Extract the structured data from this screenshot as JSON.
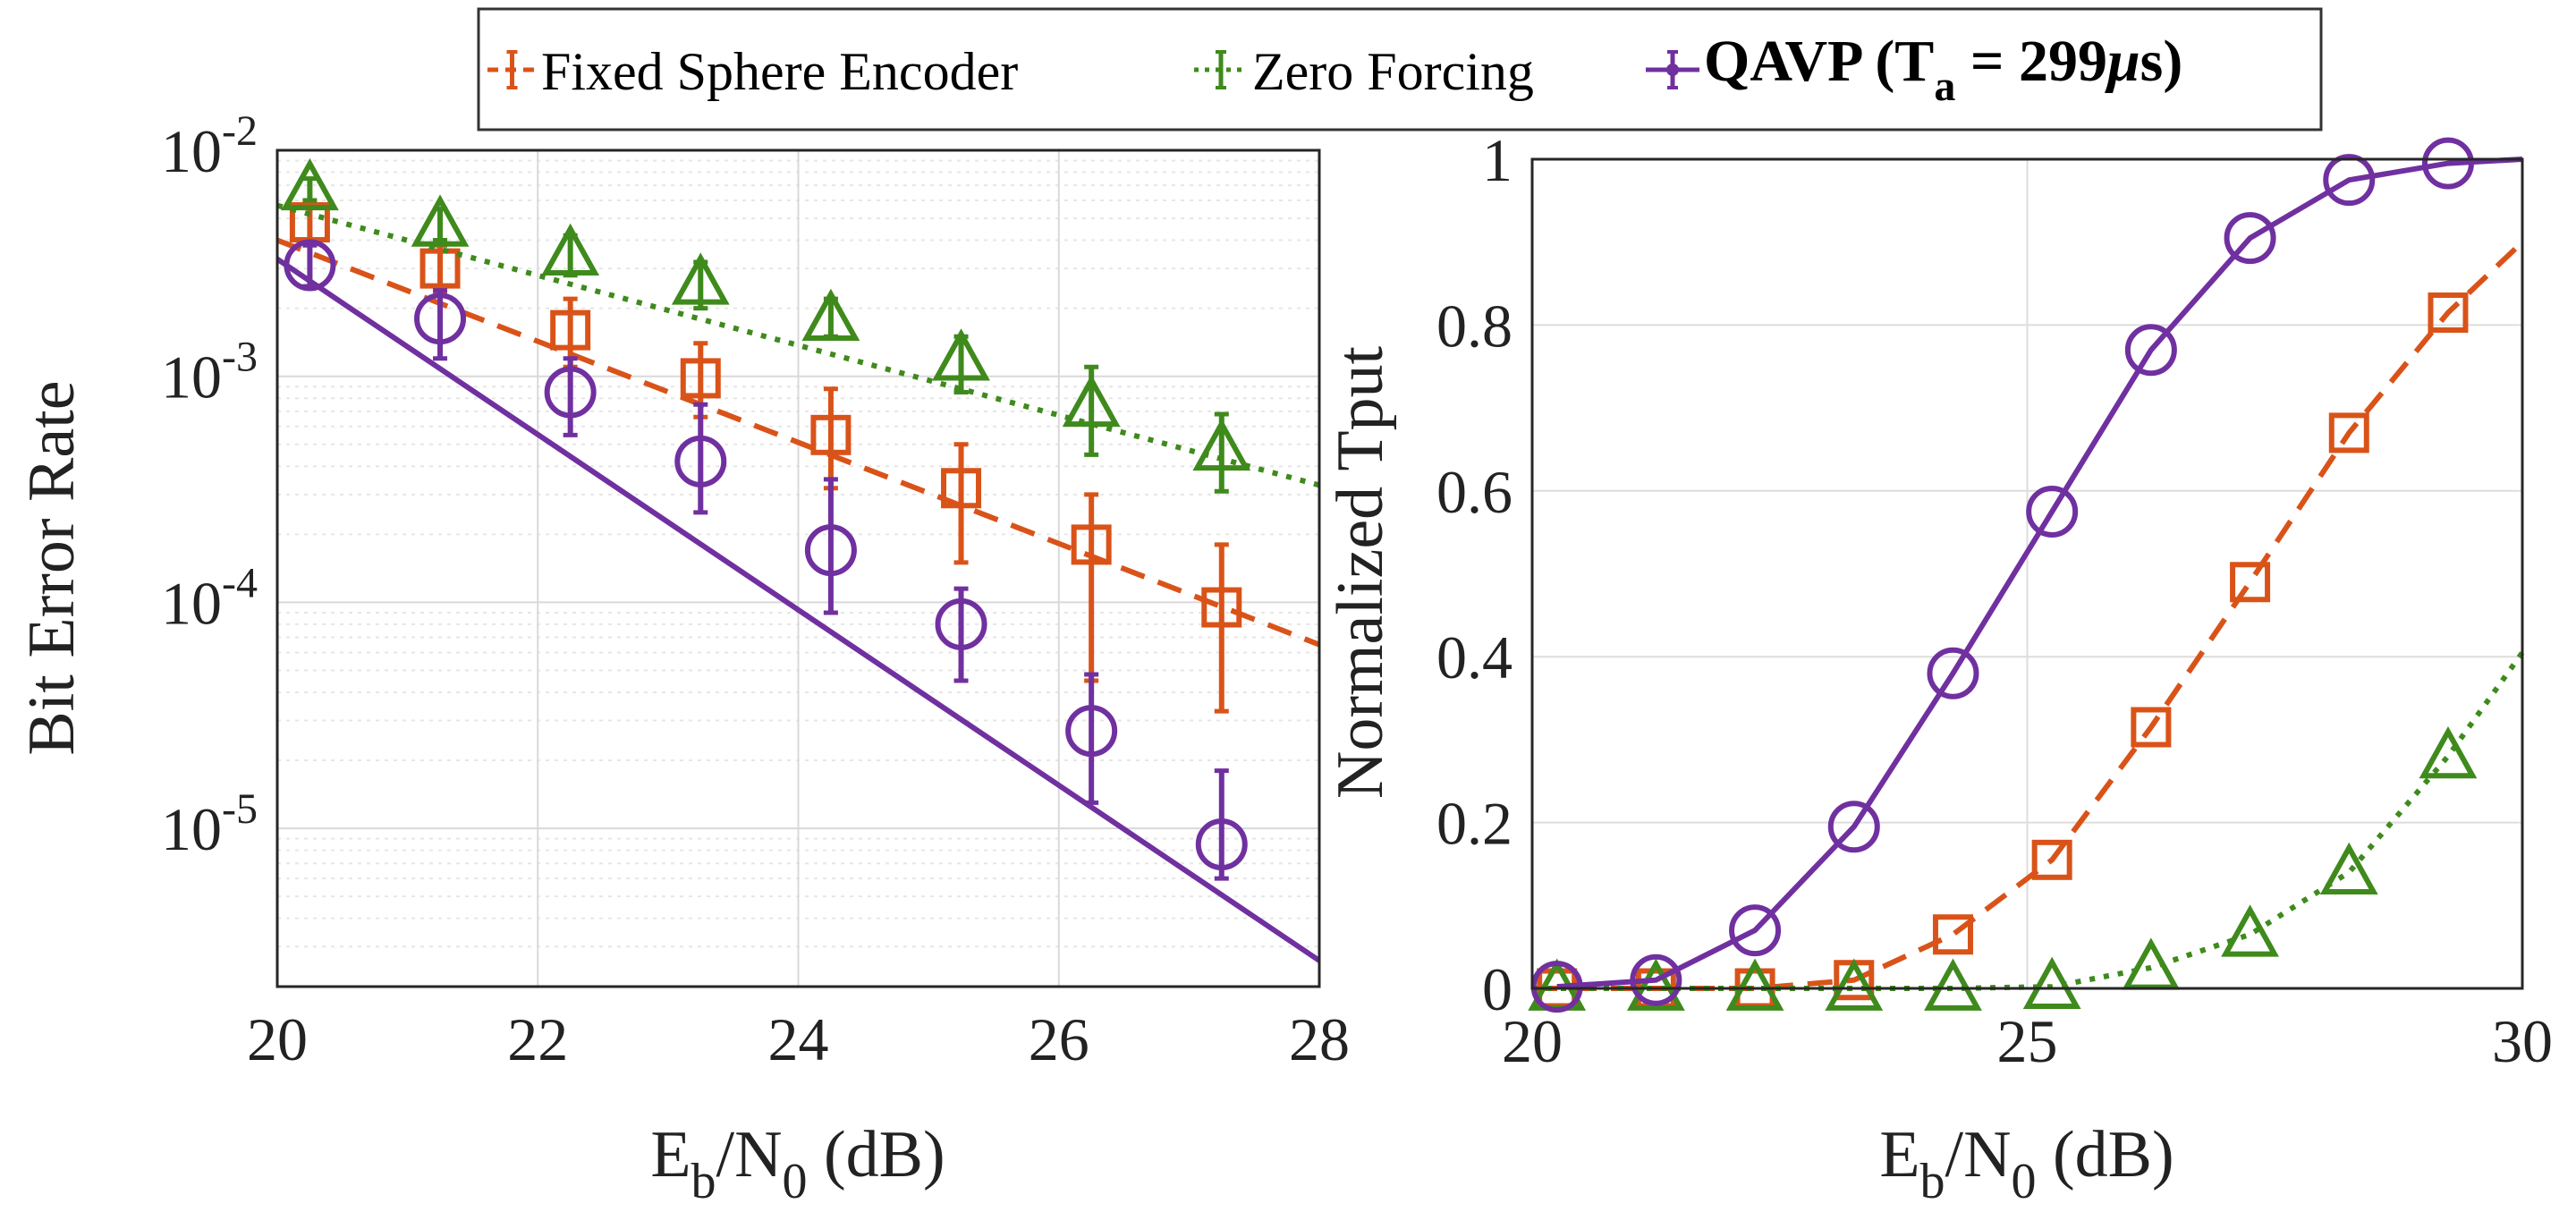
{
  "legend": {
    "entries": [
      {
        "label": "Fixed Sphere Encoder",
        "series": "fse"
      },
      {
        "label": "Zero Forcing",
        "series": "zf"
      },
      {
        "label_main": "QAVP (T",
        "label_sub": "a",
        "label_rest": " = 299",
        "label_mu": "μ",
        "label_end": "s)",
        "series": "qavp"
      }
    ]
  },
  "styles": {
    "fse": {
      "color": "#d95319",
      "dash": "dashed",
      "marker": "square"
    },
    "zf": {
      "color": "#3f8a1c",
      "dash": "dotted",
      "marker": "triangle"
    },
    "qavp": {
      "color": "#7030a0",
      "dash": "solid",
      "marker": "circle"
    }
  },
  "chart_data": [
    {
      "type": "line",
      "yscale": "log",
      "xlabel_main": "E",
      "xlabel_sub1": "b",
      "xlabel_mid": "/N",
      "xlabel_sub2": "0",
      "xlabel_end": " (dB)",
      "ylabel": "Bit Error Rate",
      "xlim": [
        20,
        28
      ],
      "ylim_exp": [
        -5.7,
        -2
      ],
      "xticks": [
        "20",
        "22",
        "24",
        "26",
        "28"
      ],
      "xtick_values": [
        20,
        22,
        24,
        26,
        28
      ],
      "yticks": [
        {
          "base": "10",
          "exp": "-2",
          "value": -2
        },
        {
          "base": "10",
          "exp": "-3",
          "value": -3
        },
        {
          "base": "10",
          "exp": "-4",
          "value": -4
        },
        {
          "base": "10",
          "exp": "-5",
          "value": -5
        }
      ],
      "series": [
        {
          "name": "Fixed Sphere Encoder",
          "key": "fse",
          "line_x": [
            20,
            28
          ],
          "line_y": [
            0.004,
            6.5e-05
          ],
          "x": [
            20.25,
            21.25,
            22.25,
            23.25,
            24.25,
            25.25,
            26.25,
            27.25
          ],
          "y": [
            0.0048,
            0.003,
            0.0016,
            0.00098,
            0.00055,
            0.00032,
            0.00018,
            9.5e-05
          ],
          "err_low": [
            0.004,
            0.0023,
            0.0011,
            0.00066,
            0.00032,
            0.00015,
            4.5e-05,
            3.3e-05
          ],
          "err_high": [
            0.0056,
            0.0038,
            0.0022,
            0.0014,
            0.00088,
            0.0005,
            0.0003,
            0.00018
          ]
        },
        {
          "name": "Zero Forcing",
          "key": "zf",
          "line_x": [
            20,
            28
          ],
          "line_y": [
            0.0057,
            0.00033
          ],
          "x": [
            20.25,
            21.25,
            22.25,
            23.25,
            24.25,
            25.25,
            26.25,
            27.25
          ],
          "y": [
            0.0068,
            0.0047,
            0.0035,
            0.0026,
            0.0018,
            0.0012,
            0.00075,
            0.00048
          ],
          "err_low": [
            0.006,
            0.004,
            0.0028,
            0.002,
            0.0015,
            0.00085,
            0.00045,
            0.00031
          ],
          "err_high": [
            0.0075,
            0.0055,
            0.0042,
            0.0032,
            0.0022,
            0.0015,
            0.0011,
            0.00068
          ]
        },
        {
          "name": "QAVP (Ta = 299μs)",
          "key": "qavp",
          "line_x": [
            20,
            28
          ],
          "line_y": [
            0.0033,
            2.6e-06
          ],
          "x": [
            20.25,
            21.25,
            22.25,
            23.25,
            24.25,
            25.25,
            26.25,
            27.25
          ],
          "y": [
            0.0031,
            0.0018,
            0.00085,
            0.00042,
            0.00017,
            8e-05,
            2.7e-05,
            8.5e-06
          ],
          "err_low": [
            0.0025,
            0.0012,
            0.00055,
            0.00025,
            9e-05,
            4.5e-05,
            1.3e-05,
            6e-06
          ],
          "err_high": [
            0.0038,
            0.0024,
            0.0012,
            0.00075,
            0.00035,
            0.000115,
            4.8e-05,
            1.8e-05
          ]
        }
      ]
    },
    {
      "type": "line",
      "yscale": "linear",
      "xlabel_main": "E",
      "xlabel_sub1": "b",
      "xlabel_mid": "/N",
      "xlabel_sub2": "0",
      "xlabel_end": " (dB)",
      "ylabel": "Normalized Tput",
      "xlim": [
        20,
        30
      ],
      "ylim": [
        0,
        1
      ],
      "xticks": [
        "20",
        "25",
        "30"
      ],
      "xtick_values": [
        20,
        25,
        30
      ],
      "yticks": [
        "0",
        "0.2",
        "0.4",
        "0.6",
        "0.8",
        "1"
      ],
      "ytick_values": [
        0,
        0.2,
        0.4,
        0.6,
        0.8,
        1
      ],
      "series": [
        {
          "name": "Fixed Sphere Encoder",
          "key": "fse",
          "x": [
            20,
            20.25,
            21.25,
            22.25,
            23.25,
            24.25,
            25.25,
            26.25,
            27.25,
            28.25,
            29.25,
            30
          ],
          "y": [
            0,
            0,
            0,
            0,
            0.01,
            0.065,
            0.155,
            0.315,
            0.49,
            0.67,
            0.815,
            0.9
          ],
          "marker_x": [
            20.25,
            21.25,
            22.25,
            23.25,
            24.25,
            25.25,
            26.25,
            27.25,
            28.25,
            29.25
          ],
          "marker_y": [
            0,
            0,
            0,
            0.01,
            0.065,
            0.155,
            0.315,
            0.49,
            0.67,
            0.815
          ]
        },
        {
          "name": "Zero Forcing",
          "key": "zf",
          "x": [
            20,
            20.25,
            21.25,
            22.25,
            23.25,
            24.25,
            25.25,
            26.25,
            27.25,
            28.25,
            29.25,
            30
          ],
          "y": [
            0,
            0,
            0,
            0,
            0,
            0,
            0.002,
            0.025,
            0.065,
            0.14,
            0.28,
            0.405
          ],
          "marker_x": [
            20.25,
            21.25,
            22.25,
            23.25,
            24.25,
            25.25,
            26.25,
            27.25,
            28.25,
            29.25
          ],
          "marker_y": [
            0,
            0,
            0,
            0,
            0,
            0.002,
            0.025,
            0.065,
            0.14,
            0.28
          ]
        },
        {
          "name": "QAVP (Ta = 299μs)",
          "key": "qavp",
          "x": [
            20.25,
            21.25,
            22.25,
            23.25,
            24.25,
            25.25,
            26.25,
            27.25,
            28.25,
            29.25,
            30
          ],
          "y": [
            0.002,
            0.01,
            0.07,
            0.195,
            0.38,
            0.575,
            0.77,
            0.905,
            0.975,
            0.995,
            1.0
          ],
          "marker_x": [
            20.25,
            21.25,
            22.25,
            23.25,
            24.25,
            25.25,
            26.25,
            27.25,
            28.25,
            29.25
          ],
          "marker_y": [
            0.002,
            0.01,
            0.07,
            0.195,
            0.38,
            0.575,
            0.77,
            0.905,
            0.975,
            0.995
          ]
        }
      ]
    }
  ]
}
